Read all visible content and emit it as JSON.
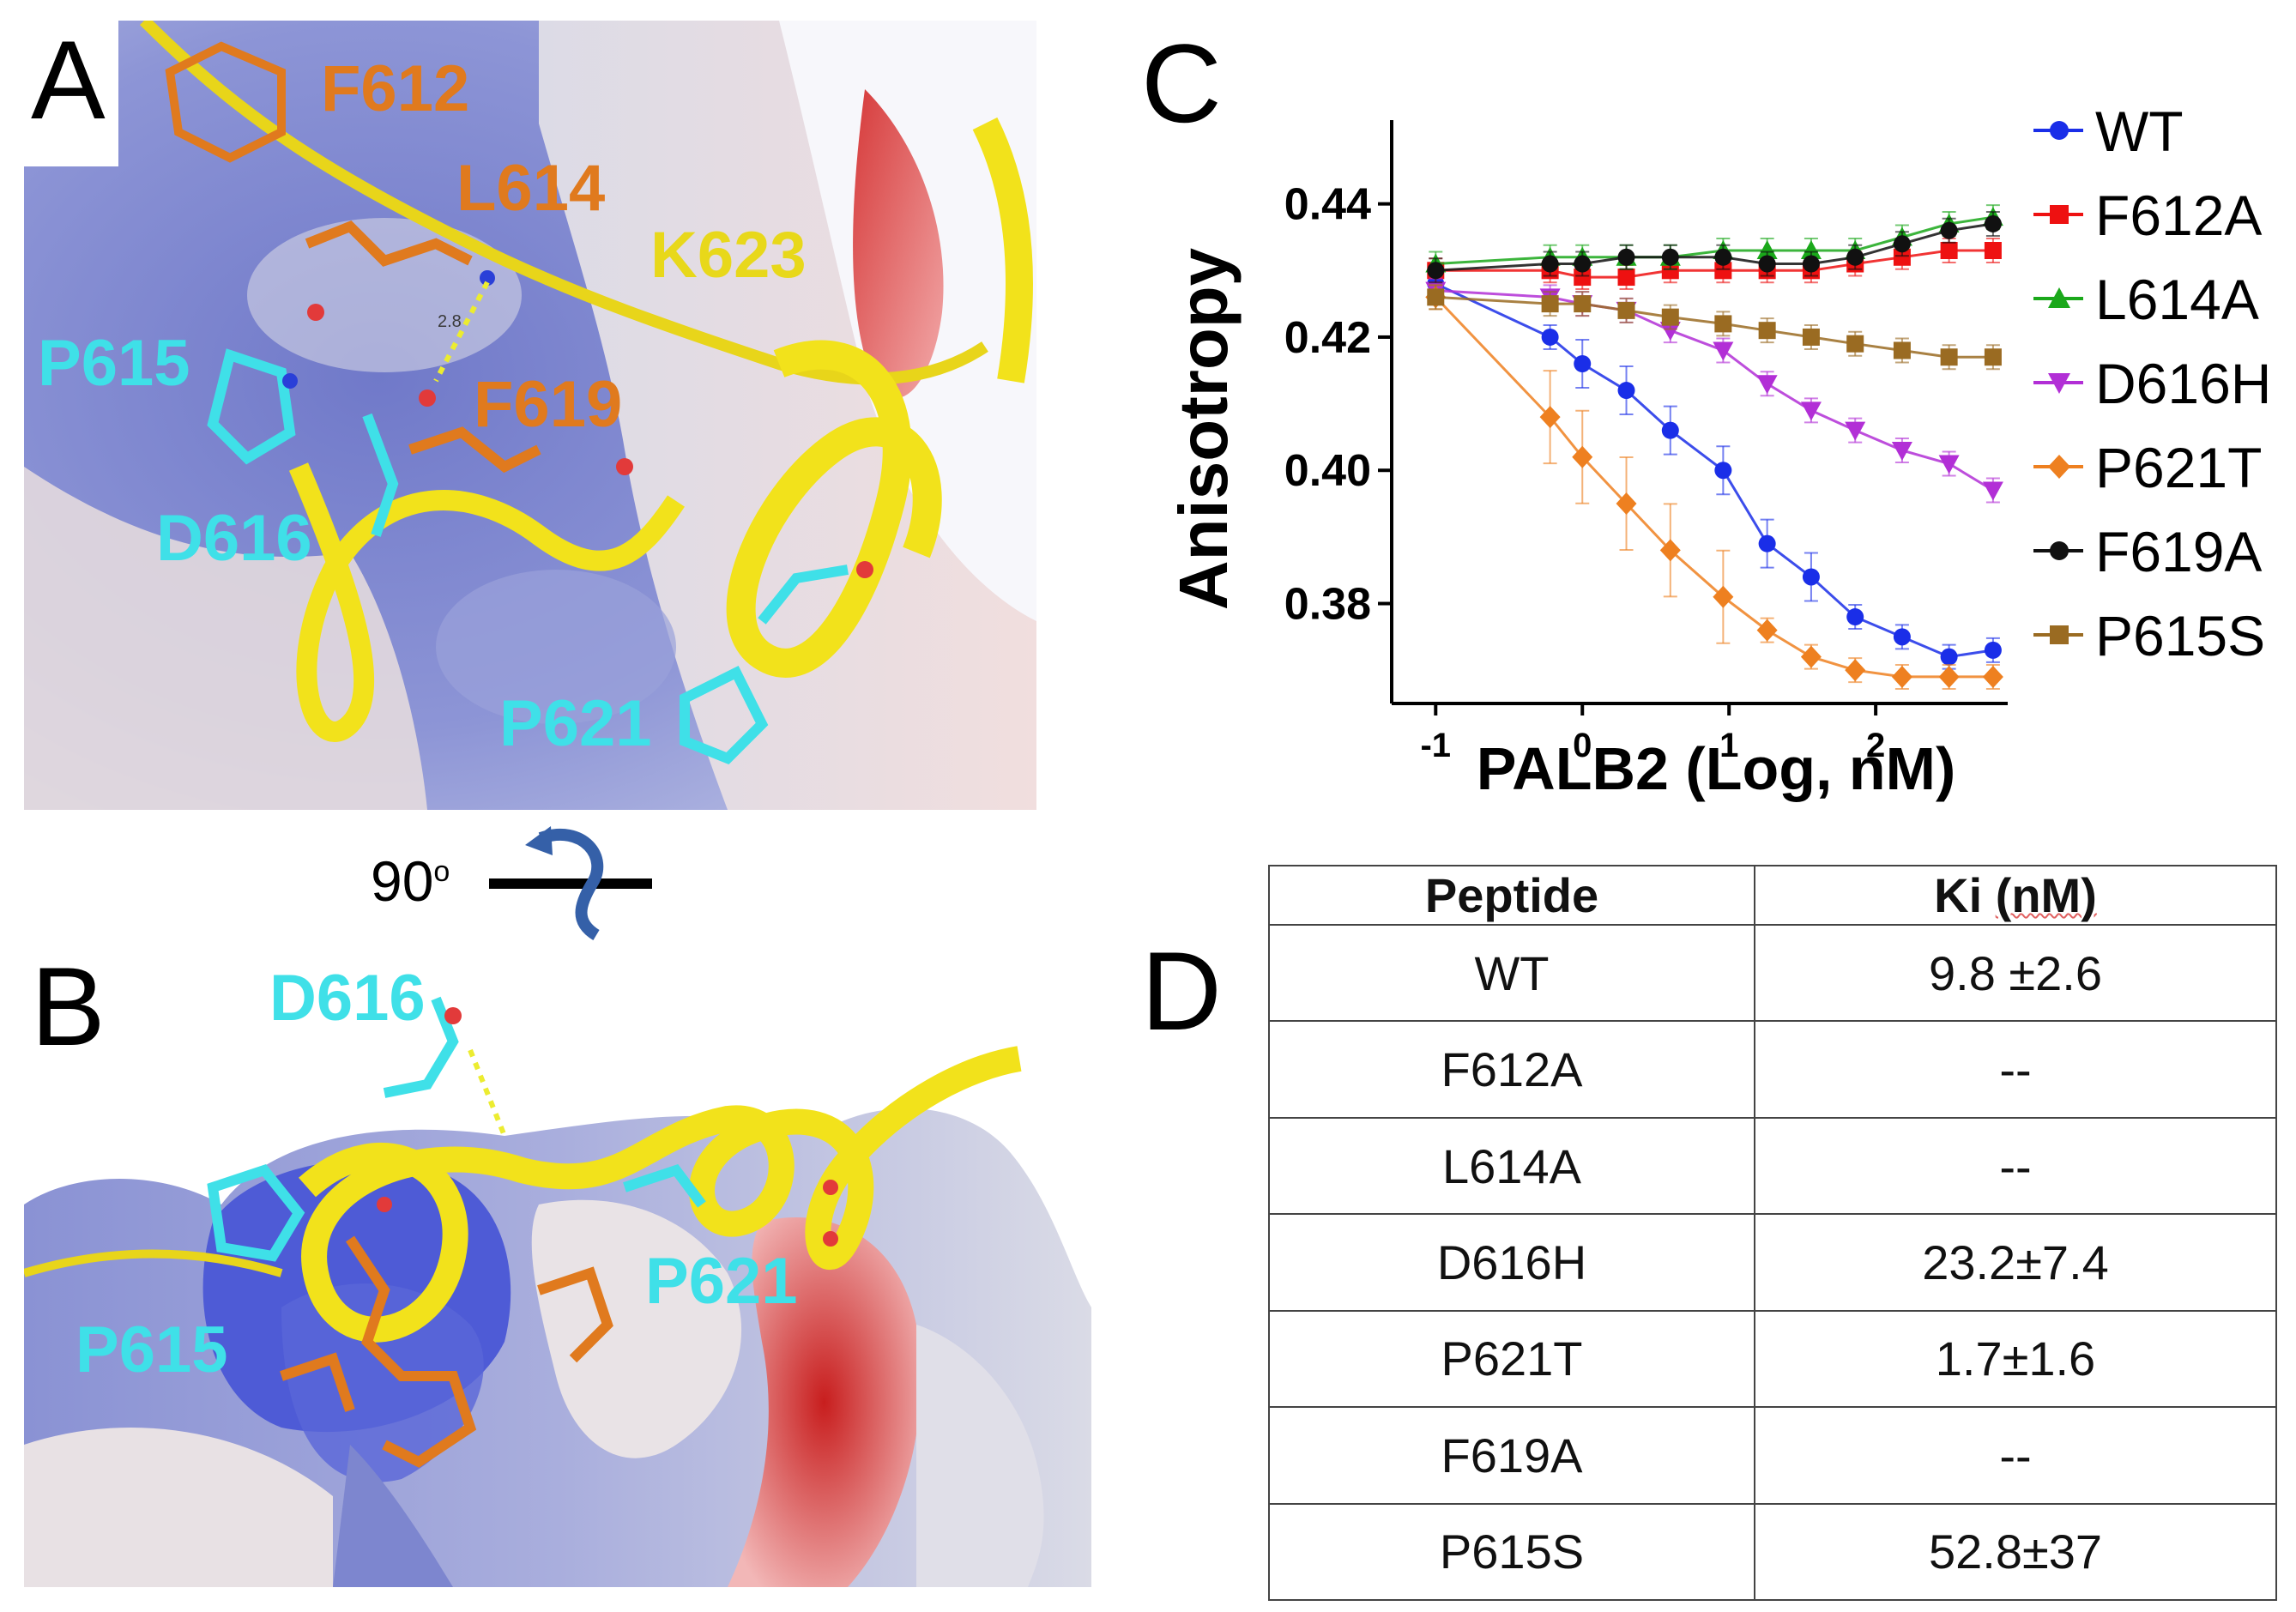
{
  "panels": {
    "a": {
      "letter": "A",
      "residue_labels": {
        "f612": "F612",
        "l614": "L614",
        "k623": "K623",
        "p615": "P615",
        "f619": "F619",
        "d616": "D616",
        "p621": "P621"
      },
      "distance": "2.8"
    },
    "rotation": {
      "angle": "90",
      "unit": "o"
    },
    "b": {
      "letter": "B",
      "residue_labels": {
        "d616": "D616",
        "p615": "P615",
        "p621": "P621"
      }
    },
    "c": {
      "letter": "C"
    },
    "d": {
      "letter": "D"
    }
  },
  "colors": {
    "surface_blue": "#7d86cf",
    "surface_white": "#e4e3ea",
    "surface_red": "#d83838",
    "helix_yellow": "#f2e21b",
    "label_orange": "#e07a1e",
    "label_cyan": "#3fe0e8",
    "label_yellow": "#e8d81a"
  },
  "chart_data": {
    "type": "scatter",
    "xlabel": "PALB2 (Log, nM)",
    "ylabel": "Anisotropy",
    "xlim": [
      -1.3,
      2.9
    ],
    "ylim": [
      0.365,
      0.45
    ],
    "x_ticks": [
      "-1",
      "0",
      "1",
      "2"
    ],
    "y_ticks": [
      "0.38",
      "0.40",
      "0.42",
      "0.44"
    ],
    "x": [
      -1.0,
      -0.22,
      0.0,
      0.3,
      0.6,
      0.96,
      1.26,
      1.56,
      1.86,
      2.18,
      2.5,
      2.8
    ],
    "series": [
      {
        "name": "WT",
        "color": "#1a2ee8",
        "marker": "circle",
        "values": [
          0.428,
          0.42,
          0.416,
          0.412,
          0.406,
          0.4,
          0.389,
          0.384,
          0.378,
          0.375,
          0.372,
          0.373
        ]
      },
      {
        "name": "F612A",
        "color": "#ee1111",
        "marker": "square",
        "values": [
          0.43,
          0.43,
          0.429,
          0.429,
          0.43,
          0.43,
          0.43,
          0.43,
          0.431,
          0.432,
          0.433,
          0.433
        ]
      },
      {
        "name": "L614A",
        "color": "#1aa81a",
        "marker": "triangle-up",
        "values": [
          0.431,
          0.432,
          0.432,
          0.432,
          0.432,
          0.433,
          0.433,
          0.433,
          0.433,
          0.435,
          0.437,
          0.438
        ]
      },
      {
        "name": "D616H",
        "color": "#b22fd6",
        "marker": "triangle-down",
        "values": [
          0.427,
          0.426,
          0.425,
          0.424,
          0.421,
          0.418,
          0.413,
          0.409,
          0.406,
          0.403,
          0.401,
          0.397
        ]
      },
      {
        "name": "P621T",
        "color": "#ee8020",
        "marker": "diamond",
        "values": [
          0.426,
          0.408,
          0.402,
          0.395,
          0.388,
          0.381,
          0.376,
          0.372,
          0.37,
          0.369,
          0.369,
          0.369
        ]
      },
      {
        "name": "F619A",
        "color": "#111111",
        "marker": "circle",
        "values": [
          0.43,
          0.431,
          0.431,
          0.432,
          0.432,
          0.432,
          0.431,
          0.431,
          0.432,
          0.434,
          0.436,
          0.437
        ]
      },
      {
        "name": "P615S",
        "color": "#9a6b22",
        "marker": "square",
        "values": [
          0.426,
          0.425,
          0.425,
          0.424,
          0.423,
          0.422,
          0.421,
          0.42,
          0.419,
          0.418,
          0.417,
          0.417
        ]
      }
    ],
    "legend_position": "right"
  },
  "table": {
    "headers": {
      "peptide": "Peptide",
      "ki": "Ki",
      "unit": "(nM)"
    },
    "rows": [
      {
        "peptide": "WT",
        "ki": "9.8 ±2.6"
      },
      {
        "peptide": "F612A",
        "ki": "--"
      },
      {
        "peptide": "L614A",
        "ki": "--"
      },
      {
        "peptide": "D616H",
        "ki": "23.2±7.4"
      },
      {
        "peptide": "P621T",
        "ki": "1.7±1.6"
      },
      {
        "peptide": "F619A",
        "ki": "--"
      },
      {
        "peptide": "P615S",
        "ki": "52.8±37"
      }
    ]
  }
}
